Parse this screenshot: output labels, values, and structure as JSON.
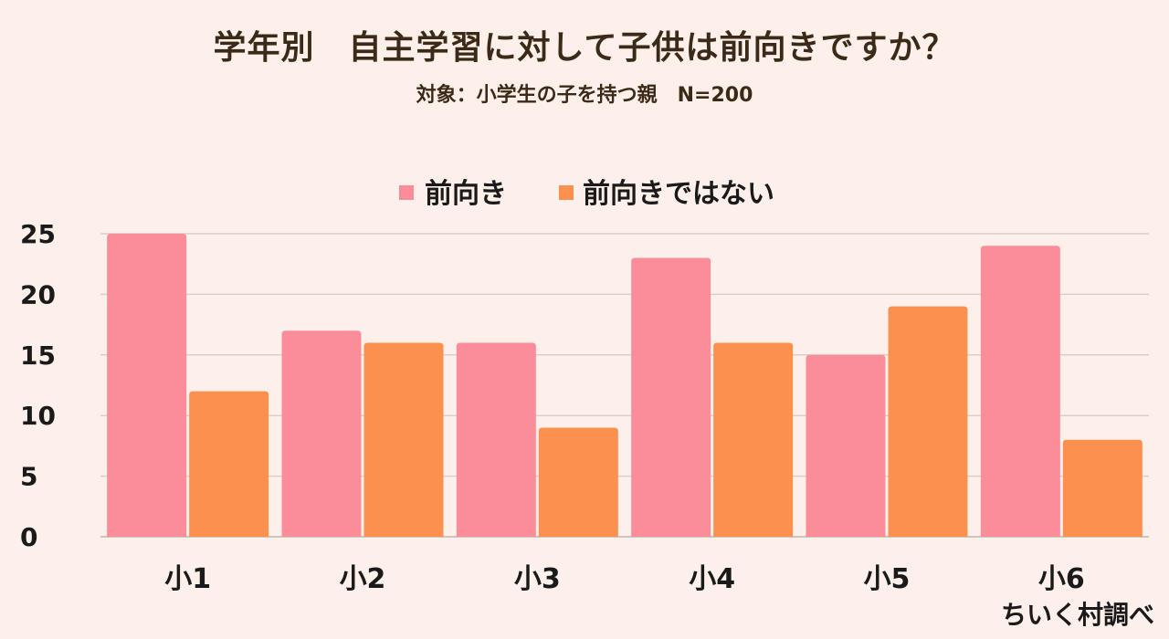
{
  "chart_data": {
    "type": "bar",
    "title": "学年別　自主学習に対して子供は前向きですか？",
    "subtitle": "対象：小学生の子を持つ親　N=200",
    "categories": [
      "小1",
      "小2",
      "小3",
      "小4",
      "小5",
      "小6"
    ],
    "series": [
      {
        "name": "前向き",
        "color": "#fb8c9a",
        "values": [
          25,
          17,
          16,
          23,
          15,
          24
        ]
      },
      {
        "name": "前向きではない",
        "color": "#fb904f",
        "values": [
          12,
          16,
          9,
          16,
          19,
          8
        ]
      }
    ],
    "ylim": [
      0,
      25
    ],
    "yticks": [
      "0",
      "5",
      "10",
      "15",
      "20",
      "25"
    ],
    "grid": true,
    "legend_position": "top-center",
    "credit": "ちいく村調べ"
  }
}
